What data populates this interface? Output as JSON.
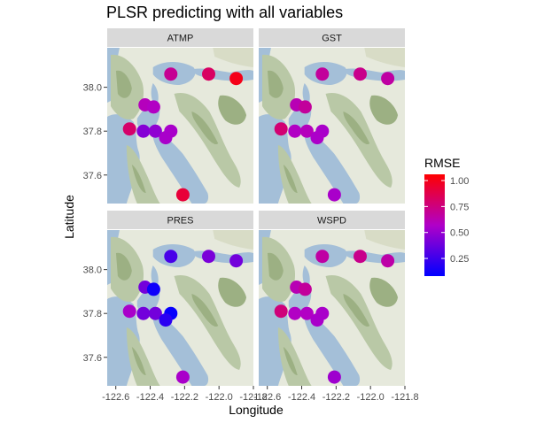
{
  "chart_data": {
    "type": "scatter",
    "title": "PLSR predicting with all variables",
    "xlabel": "Longitude",
    "ylabel": "Latitude",
    "xlim": [
      -122.65,
      -121.8
    ],
    "ylim": [
      37.47,
      38.18
    ],
    "xticks": [
      -122.6,
      -122.4,
      -122.2,
      -122.0,
      -121.8
    ],
    "xtick_labels": [
      "-122.6",
      "-122.4",
      "-122.2",
      "-122.0",
      "-121.8"
    ],
    "yticks": [
      37.6,
      37.8,
      38.0
    ],
    "ytick_labels": [
      "37.6",
      "37.8",
      "38.0"
    ],
    "facets": [
      "ATMP",
      "GST",
      "PRES",
      "WSPD"
    ],
    "stations": [
      {
        "lon": -122.28,
        "lat": 38.06
      },
      {
        "lon": -122.06,
        "lat": 38.06
      },
      {
        "lon": -121.9,
        "lat": 38.04
      },
      {
        "lon": -122.43,
        "lat": 37.92
      },
      {
        "lon": -122.38,
        "lat": 37.91
      },
      {
        "lon": -122.52,
        "lat": 37.81
      },
      {
        "lon": -122.44,
        "lat": 37.8
      },
      {
        "lon": -122.37,
        "lat": 37.8
      },
      {
        "lon": -122.28,
        "lat": 37.8
      },
      {
        "lon": -122.31,
        "lat": 37.77
      },
      {
        "lon": -122.21,
        "lat": 37.51
      }
    ],
    "series": [
      {
        "name": "ATMP",
        "values": [
          0.7,
          0.82,
          1.0,
          0.6,
          0.58,
          0.8,
          0.45,
          0.48,
          0.55,
          0.55,
          0.92
        ]
      },
      {
        "name": "GST",
        "values": [
          0.68,
          0.72,
          0.66,
          0.62,
          0.68,
          0.78,
          0.58,
          0.6,
          0.55,
          0.56,
          0.55
        ]
      },
      {
        "name": "PRES",
        "values": [
          0.28,
          0.42,
          0.4,
          0.4,
          0.12,
          0.55,
          0.4,
          0.4,
          0.1,
          0.2,
          0.55
        ]
      },
      {
        "name": "WSPD",
        "values": [
          0.66,
          0.72,
          0.65,
          0.62,
          0.68,
          0.76,
          0.58,
          0.58,
          0.55,
          0.55,
          0.52
        ]
      }
    ],
    "legend": {
      "title": "RMSE",
      "position": "right",
      "breaks": [
        1.0,
        0.75,
        0.5,
        0.25
      ],
      "break_labels": [
        "1.00",
        "0.75",
        "0.50",
        "0.25"
      ],
      "range": [
        0.08,
        1.06
      ],
      "low_color": "#0000ff",
      "high_color": "#ff0000"
    }
  },
  "colors": {
    "strip_bg": "#d9d9d9",
    "water": "#a4bfd8",
    "land": "#e6e9dc",
    "hills": "#b9c8a6",
    "forest": "#9cb083"
  }
}
